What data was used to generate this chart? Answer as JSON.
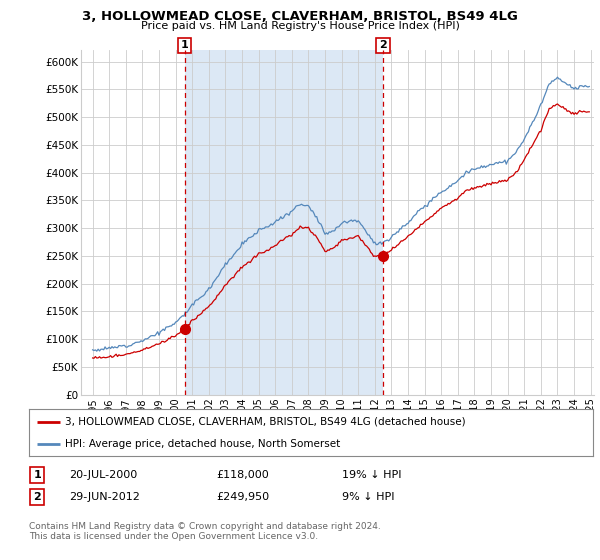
{
  "title": "3, HOLLOWMEAD CLOSE, CLAVERHAM, BRISTOL, BS49 4LG",
  "subtitle": "Price paid vs. HM Land Registry's House Price Index (HPI)",
  "legend_line1": "3, HOLLOWMEAD CLOSE, CLAVERHAM, BRISTOL, BS49 4LG (detached house)",
  "legend_line2": "HPI: Average price, detached house, North Somerset",
  "ann1": {
    "label": "1",
    "date": "20-JUL-2000",
    "price": "£118,000",
    "note": "19% ↓ HPI",
    "x_year": 2000.55,
    "y_val": 118000
  },
  "ann2": {
    "label": "2",
    "date": "29-JUN-2012",
    "price": "£249,950",
    "note": "9% ↓ HPI",
    "x_year": 2012.49,
    "y_val": 249950
  },
  "vline1_x": 2000.55,
  "vline2_x": 2012.49,
  "ylim": [
    0,
    620000
  ],
  "yticks": [
    0,
    50000,
    100000,
    150000,
    200000,
    250000,
    300000,
    350000,
    400000,
    450000,
    500000,
    550000,
    600000
  ],
  "ytick_labels": [
    "£0",
    "£50K",
    "£100K",
    "£150K",
    "£200K",
    "£250K",
    "£300K",
    "£350K",
    "£400K",
    "£450K",
    "£500K",
    "£550K",
    "£600K"
  ],
  "xlim": [
    1994.3,
    2025.2
  ],
  "footer": "Contains HM Land Registry data © Crown copyright and database right 2024.\nThis data is licensed under the Open Government Licence v3.0.",
  "red_color": "#cc0000",
  "blue_color": "#5588bb",
  "vline_color": "#cc0000",
  "shade_color": "#dce8f5",
  "background_color": "#ffffff",
  "grid_color": "#cccccc"
}
